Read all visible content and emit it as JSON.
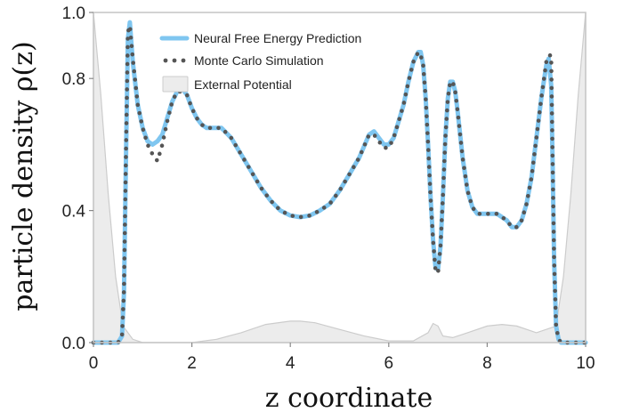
{
  "chart_data": {
    "type": "line",
    "xlabel": "z coordinate",
    "ylabel": "particle density ρ(z)",
    "xlim": [
      0,
      10
    ],
    "ylim": [
      0,
      1.0
    ],
    "x_ticks": [
      "0",
      "2",
      "4",
      "6",
      "8",
      "10"
    ],
    "y_ticks": [
      "0.0",
      "0.4",
      "0.8",
      "1.0"
    ],
    "grid": false,
    "legend_position": "top-left",
    "colors": {
      "prediction": "#7fc6f0",
      "monte_carlo": "#555555",
      "potential_fill": "#ececec",
      "potential_line": "#cccccc",
      "frame": "#c8c8c8"
    },
    "series": [
      {
        "name": "Neural Free Energy Prediction",
        "style": "line",
        "x": [
          0,
          0.5,
          0.58,
          0.62,
          0.66,
          0.7,
          0.74,
          0.8,
          0.9,
          1.0,
          1.1,
          1.2,
          1.3,
          1.4,
          1.5,
          1.6,
          1.7,
          1.8,
          1.9,
          2.0,
          2.1,
          2.2,
          2.3,
          2.4,
          2.5,
          2.6,
          2.8,
          3.0,
          3.2,
          3.4,
          3.6,
          3.8,
          4.0,
          4.2,
          4.4,
          4.6,
          4.8,
          5.0,
          5.2,
          5.4,
          5.6,
          5.7,
          5.8,
          5.9,
          6.0,
          6.1,
          6.2,
          6.3,
          6.4,
          6.5,
          6.6,
          6.65,
          6.7,
          6.75,
          6.8,
          6.85,
          6.9,
          6.95,
          7.0,
          7.05,
          7.1,
          7.15,
          7.2,
          7.25,
          7.3,
          7.35,
          7.4,
          7.5,
          7.6,
          7.7,
          7.8,
          7.9,
          8.0,
          8.1,
          8.2,
          8.3,
          8.4,
          8.5,
          8.6,
          8.7,
          8.8,
          8.9,
          9.0,
          9.1,
          9.2,
          9.25,
          9.3,
          9.33,
          9.36,
          9.4,
          9.45,
          9.5,
          9.6,
          10
        ],
        "values": [
          0,
          0,
          0.02,
          0.15,
          0.55,
          0.92,
          0.97,
          0.85,
          0.72,
          0.65,
          0.61,
          0.6,
          0.61,
          0.63,
          0.68,
          0.73,
          0.76,
          0.77,
          0.75,
          0.71,
          0.68,
          0.66,
          0.65,
          0.65,
          0.65,
          0.65,
          0.62,
          0.57,
          0.52,
          0.47,
          0.43,
          0.4,
          0.385,
          0.38,
          0.385,
          0.4,
          0.42,
          0.46,
          0.51,
          0.56,
          0.63,
          0.64,
          0.62,
          0.6,
          0.6,
          0.62,
          0.67,
          0.72,
          0.79,
          0.85,
          0.88,
          0.88,
          0.84,
          0.74,
          0.6,
          0.44,
          0.31,
          0.23,
          0.22,
          0.29,
          0.44,
          0.62,
          0.74,
          0.79,
          0.79,
          0.76,
          0.7,
          0.56,
          0.46,
          0.41,
          0.39,
          0.39,
          0.39,
          0.39,
          0.39,
          0.38,
          0.37,
          0.35,
          0.35,
          0.37,
          0.42,
          0.5,
          0.62,
          0.74,
          0.84,
          0.86,
          0.78,
          0.55,
          0.25,
          0.05,
          0.01,
          0,
          0,
          0
        ]
      },
      {
        "name": "Monte Carlo Simulation",
        "style": "dotted",
        "x": [
          0,
          0.5,
          0.58,
          0.62,
          0.66,
          0.7,
          0.74,
          0.8,
          0.9,
          1.0,
          1.1,
          1.2,
          1.3,
          1.4,
          1.5,
          1.6,
          1.7,
          1.8,
          1.9,
          2.0,
          2.1,
          2.2,
          2.3,
          2.4,
          2.5,
          2.6,
          2.8,
          3.0,
          3.2,
          3.4,
          3.6,
          3.8,
          4.0,
          4.2,
          4.4,
          4.6,
          4.8,
          5.0,
          5.2,
          5.4,
          5.6,
          5.7,
          5.8,
          5.9,
          6.0,
          6.1,
          6.2,
          6.3,
          6.4,
          6.5,
          6.6,
          6.65,
          6.7,
          6.75,
          6.8,
          6.85,
          6.9,
          6.95,
          7.0,
          7.05,
          7.1,
          7.15,
          7.2,
          7.25,
          7.3,
          7.35,
          7.4,
          7.5,
          7.6,
          7.7,
          7.8,
          7.9,
          8.0,
          8.1,
          8.2,
          8.3,
          8.4,
          8.5,
          8.6,
          8.7,
          8.8,
          8.9,
          9.0,
          9.1,
          9.2,
          9.25,
          9.3,
          9.33,
          9.36,
          9.4,
          9.45,
          9.5,
          9.6,
          10
        ],
        "values": [
          0,
          0,
          0.02,
          0.16,
          0.57,
          0.94,
          0.96,
          0.86,
          0.72,
          0.65,
          0.6,
          0.57,
          0.55,
          0.6,
          0.67,
          0.73,
          0.76,
          0.76,
          0.75,
          0.71,
          0.68,
          0.66,
          0.65,
          0.65,
          0.65,
          0.65,
          0.62,
          0.57,
          0.52,
          0.47,
          0.43,
          0.4,
          0.385,
          0.38,
          0.385,
          0.4,
          0.42,
          0.46,
          0.51,
          0.56,
          0.63,
          0.63,
          0.61,
          0.59,
          0.59,
          0.62,
          0.67,
          0.72,
          0.79,
          0.85,
          0.88,
          0.87,
          0.84,
          0.74,
          0.6,
          0.44,
          0.31,
          0.22,
          0.21,
          0.29,
          0.44,
          0.62,
          0.74,
          0.79,
          0.79,
          0.76,
          0.7,
          0.56,
          0.46,
          0.41,
          0.39,
          0.39,
          0.39,
          0.39,
          0.39,
          0.38,
          0.37,
          0.35,
          0.35,
          0.37,
          0.42,
          0.5,
          0.62,
          0.74,
          0.85,
          0.87,
          0.87,
          0.55,
          0.25,
          0.05,
          0.01,
          0,
          0,
          0
        ]
      },
      {
        "name": "External Potential",
        "style": "area",
        "x": [
          0,
          0.15,
          0.3,
          0.45,
          0.6,
          0.8,
          1.0,
          1.5,
          2.0,
          2.5,
          3.0,
          3.5,
          4.0,
          4.2,
          4.5,
          5.0,
          5.5,
          6.0,
          6.5,
          6.8,
          6.9,
          7.0,
          7.1,
          7.3,
          7.6,
          8.0,
          8.3,
          8.6,
          9.0,
          9.4,
          9.55,
          9.7,
          9.85,
          10
        ],
        "values": [
          1.0,
          0.75,
          0.45,
          0.2,
          0.05,
          0.01,
          0,
          0,
          0,
          0.01,
          0.03,
          0.055,
          0.065,
          0.065,
          0.06,
          0.04,
          0.02,
          0.005,
          0.005,
          0.03,
          0.058,
          0.05,
          0.02,
          0.015,
          0.03,
          0.05,
          0.055,
          0.05,
          0.03,
          0.05,
          0.2,
          0.45,
          0.75,
          1.0
        ]
      }
    ]
  }
}
